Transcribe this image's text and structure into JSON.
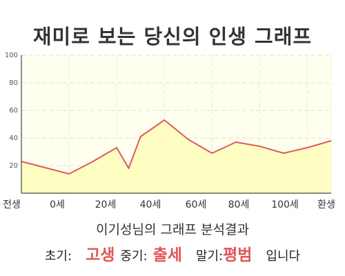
{
  "title": "재미로 보는 당신의 인생 그래프",
  "chart_data": {
    "type": "area",
    "x_labels": [
      "전생",
      "0세",
      "20세",
      "40세",
      "60세",
      "80세",
      "100세",
      "환생"
    ],
    "x": [
      -20,
      0,
      10,
      20,
      25,
      30,
      40,
      50,
      60,
      70,
      80,
      90,
      100,
      110
    ],
    "values": [
      23,
      14,
      23,
      33,
      18,
      41,
      53,
      39,
      29,
      37,
      34,
      29,
      33,
      38
    ],
    "ylim": [
      0,
      100
    ],
    "yticks": [
      20,
      40,
      60,
      80,
      100
    ],
    "grid": true,
    "colors": {
      "fill": "#fffec2",
      "line": "#df5a5a",
      "plot_bg": "#fffff0"
    }
  },
  "analysis_text": "이기성님의 그래프 분석결과",
  "summary": {
    "early_label": "초기:",
    "early_value": "고생",
    "middle_label": "중기:",
    "middle_value": "출세",
    "late_label": "말기:",
    "late_value": "평범",
    "ending": "입니다"
  }
}
